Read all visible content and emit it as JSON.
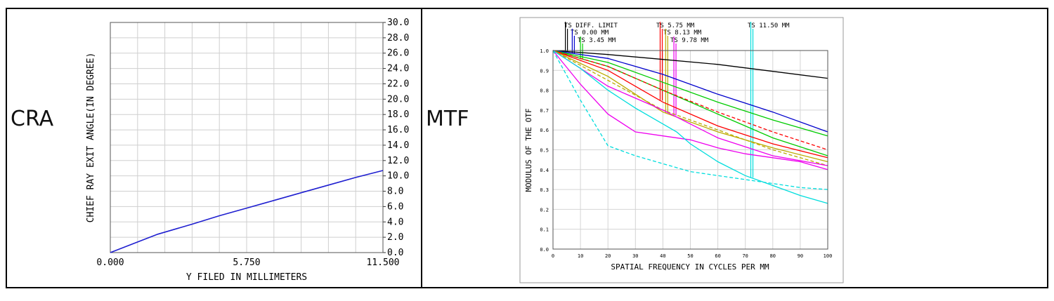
{
  "labels": {
    "left": "CRA",
    "right": "MTF"
  },
  "chart_data": [
    {
      "type": "line",
      "title": "",
      "xlabel": "Y FILED IN MILLIMETERS",
      "ylabel": "CHIEF RAY EXIT ANGLE(IN DEGREE)",
      "xlim": [
        0,
        11.5
      ],
      "ylim": [
        0,
        30
      ],
      "x_ticks": [
        "0.000",
        "5.750",
        "11.500"
      ],
      "y_ticks": [
        "0.0",
        "2.0",
        "4.0",
        "6.0",
        "8.0",
        "10.0",
        "12.0",
        "14.0",
        "16.0",
        "18.0",
        "20.0",
        "22.0",
        "24.0",
        "26.0",
        "28.0",
        "30.0"
      ],
      "grid": true,
      "series": [
        {
          "color": "#1f1fd0",
          "x": [
            0,
            1.0,
            2.0,
            3.45,
            4.6,
            5.75,
            6.9,
            8.05,
            9.2,
            10.35,
            11.5
          ],
          "y": [
            0,
            1.2,
            2.4,
            3.7,
            4.8,
            5.8,
            6.8,
            7.8,
            8.8,
            9.8,
            10.7
          ]
        }
      ]
    },
    {
      "type": "line",
      "title": "",
      "xlabel": "SPATIAL FREQUENCY IN CYCLES PER MM",
      "ylabel": "MODULUS OF THE OTF",
      "xlim": [
        0,
        100
      ],
      "ylim": [
        0,
        1
      ],
      "x_ticks": [
        "0",
        "10",
        "20",
        "30",
        "40",
        "50",
        "60",
        "70",
        "80",
        "90",
        "100"
      ],
      "y_ticks": [
        "0.0",
        "0.1",
        "0.2",
        "0.3",
        "0.4",
        "0.5",
        "0.6",
        "0.7",
        "0.8",
        "0.9",
        "1.0"
      ],
      "grid": true,
      "legend": [
        {
          "text": "TS DIFF. LIMIT",
          "color": "#000000",
          "x": 4.5
        },
        {
          "text": "TS 0.00 MM",
          "color": "#0000cc",
          "x": 7
        },
        {
          "text": "TS 3.45 MM",
          "color": "#00cc00",
          "x": 10
        },
        {
          "text": "TS 5.75 MM",
          "color": "#ff0000",
          "x": 39
        },
        {
          "text": "TS 8.13 MM",
          "color": "#bbaa00",
          "x": 41
        },
        {
          "text": "TS 9.78 MM",
          "color": "#ee00ee",
          "x": 44
        },
        {
          "text": "TS 11.50 MM",
          "color": "#00dddd",
          "x": 72
        }
      ],
      "series": [
        {
          "color": "#000000",
          "dash": false,
          "x": [
            0,
            20,
            40,
            60,
            80,
            100
          ],
          "y": [
            1.0,
            0.98,
            0.955,
            0.93,
            0.895,
            0.86
          ]
        },
        {
          "color": "#0000cc",
          "dash": false,
          "x": [
            0,
            20,
            40,
            60,
            80,
            100
          ],
          "y": [
            1.0,
            0.96,
            0.88,
            0.78,
            0.69,
            0.59
          ]
        },
        {
          "color": "#00cc00",
          "dash": false,
          "x": [
            0,
            20,
            40,
            60,
            80,
            100
          ],
          "y": [
            1.0,
            0.94,
            0.84,
            0.74,
            0.65,
            0.57
          ]
        },
        {
          "color": "#00cc00",
          "dash": false,
          "x": [
            0,
            20,
            40,
            60,
            80,
            100
          ],
          "y": [
            1.0,
            0.92,
            0.8,
            0.68,
            0.56,
            0.47
          ]
        },
        {
          "color": "#ff0000",
          "dash": true,
          "x": [
            0,
            20,
            40,
            60,
            80,
            100
          ],
          "y": [
            1.0,
            0.92,
            0.8,
            0.69,
            0.59,
            0.5
          ]
        },
        {
          "color": "#ff0000",
          "dash": false,
          "x": [
            0,
            20,
            40,
            60,
            80,
            100
          ],
          "y": [
            1.0,
            0.9,
            0.74,
            0.62,
            0.53,
            0.46
          ]
        },
        {
          "color": "#bbaa00",
          "dash": true,
          "x": [
            0,
            20,
            40,
            60,
            80,
            100
          ],
          "y": [
            1.0,
            0.85,
            0.7,
            0.6,
            0.5,
            0.42
          ]
        },
        {
          "color": "#bbaa00",
          "dash": false,
          "x": [
            0,
            20,
            40,
            60,
            80,
            100
          ],
          "y": [
            1.0,
            0.87,
            0.69,
            0.59,
            0.51,
            0.44
          ]
        },
        {
          "color": "#ee00ee",
          "dash": false,
          "x": [
            0,
            10,
            20,
            30,
            40,
            50,
            60,
            70,
            80,
            90,
            100
          ],
          "y": [
            1.0,
            0.83,
            0.68,
            0.59,
            0.57,
            0.55,
            0.51,
            0.48,
            0.46,
            0.44,
            0.4
          ]
        },
        {
          "color": "#ee00ee",
          "dash": false,
          "x": [
            0,
            20,
            40,
            60,
            80,
            100
          ],
          "y": [
            1.0,
            0.82,
            0.7,
            0.56,
            0.47,
            0.42
          ]
        },
        {
          "color": "#00dddd",
          "dash": true,
          "x": [
            0,
            10,
            20,
            30,
            40,
            50,
            60,
            70,
            80,
            90,
            100
          ],
          "y": [
            1.0,
            0.75,
            0.52,
            0.47,
            0.43,
            0.39,
            0.37,
            0.35,
            0.33,
            0.31,
            0.3
          ]
        },
        {
          "color": "#00dddd",
          "dash": false,
          "x": [
            0,
            10,
            20,
            30,
            40,
            45,
            50,
            60,
            70,
            80,
            90,
            100
          ],
          "y": [
            1.0,
            0.91,
            0.8,
            0.71,
            0.63,
            0.59,
            0.53,
            0.44,
            0.37,
            0.32,
            0.27,
            0.23
          ]
        }
      ]
    }
  ]
}
